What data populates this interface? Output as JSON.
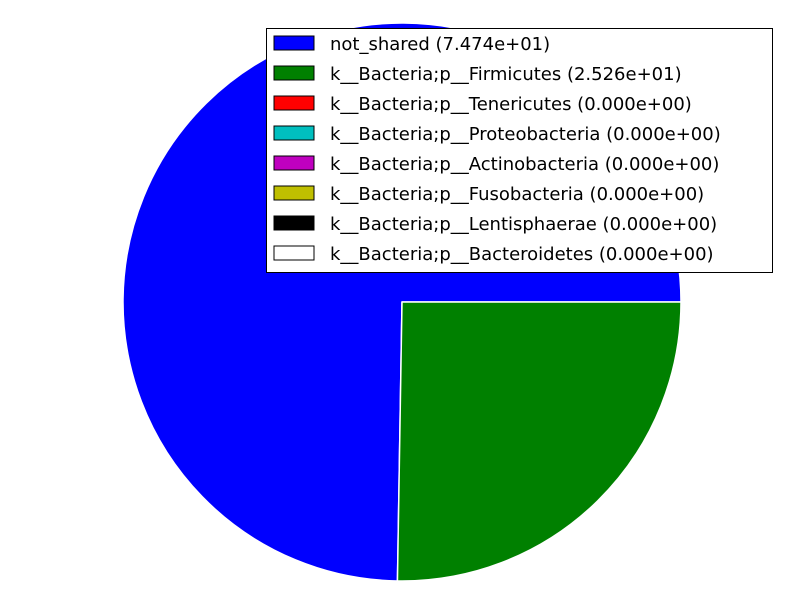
{
  "chart_data": {
    "type": "pie",
    "title": "",
    "legend_placement": "top-right",
    "slices": [
      {
        "label": "not_shared (7.474e+01)",
        "value": 74.74,
        "color": "#0000ff"
      },
      {
        "label": "k__Bacteria;p__Firmicutes (2.526e+01)",
        "value": 25.26,
        "color": "#008000"
      },
      {
        "label": "k__Bacteria;p__Tenericutes (0.000e+00)",
        "value": 0,
        "color": "#ff0000"
      },
      {
        "label": "k__Bacteria;p__Proteobacteria (0.000e+00)",
        "value": 0,
        "color": "#00bfbf"
      },
      {
        "label": "k__Bacteria;p__Actinobacteria (0.000e+00)",
        "value": 0,
        "color": "#bf00bf"
      },
      {
        "label": "k__Bacteria;p__Fusobacteria (0.000e+00)",
        "value": 0,
        "color": "#bfbf00"
      },
      {
        "label": "k__Bacteria;p__Lentisphaerae (0.000e+00)",
        "value": 0,
        "color": "#000000"
      },
      {
        "label": "k__Bacteria;p__Bacteroidetes (0.000e+00)",
        "value": 0,
        "color": "#ffffff"
      }
    ]
  }
}
